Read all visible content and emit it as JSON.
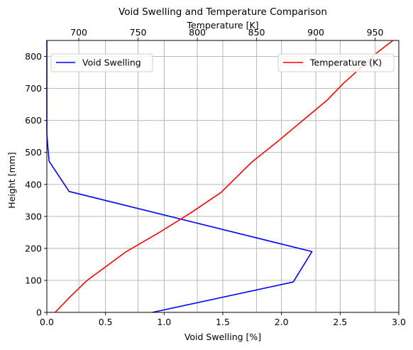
{
  "chart_data": {
    "type": "line",
    "title": "Void Swelling and Temperature Comparison",
    "ylabel": "Height [mm]",
    "ylim": [
      0,
      850
    ],
    "yticks": [
      0,
      100,
      200,
      300,
      400,
      500,
      600,
      700,
      800
    ],
    "grid": true,
    "x_bottom": {
      "label": "Void Swelling [%]",
      "lim": [
        0.0,
        3.0
      ],
      "ticks": [
        0.0,
        0.5,
        1.0,
        1.5,
        2.0,
        2.5,
        3.0
      ],
      "tick_labels": [
        "0.0",
        "0.5",
        "1.0",
        "1.5",
        "2.0",
        "2.5",
        "3.0"
      ]
    },
    "x_top": {
      "label": "Temperature [K]",
      "lim": [
        673,
        970
      ],
      "ticks": [
        700,
        750,
        800,
        850,
        900,
        950
      ],
      "tick_labels": [
        "700",
        "750",
        "800",
        "850",
        "900",
        "950"
      ]
    },
    "series": [
      {
        "name": "Void Swelling",
        "axis": "bottom",
        "color": "#0000ff",
        "points": [
          {
            "x": 0.9,
            "y": 0
          },
          {
            "x": 2.1,
            "y": 95
          },
          {
            "x": 2.26,
            "y": 190
          },
          {
            "x": 0.19,
            "y": 378
          },
          {
            "x": 0.02,
            "y": 472
          },
          {
            "x": 0.01,
            "y": 510
          },
          {
            "x": 0.0,
            "y": 560
          },
          {
            "x": 0.0,
            "y": 850
          }
        ]
      },
      {
        "name": "Temperature (K)",
        "axis": "top",
        "color": "#ff0000",
        "points": [
          {
            "x": 680,
            "y": 0
          },
          {
            "x": 693,
            "y": 50
          },
          {
            "x": 707,
            "y": 100
          },
          {
            "x": 740,
            "y": 190
          },
          {
            "x": 768,
            "y": 250
          },
          {
            "x": 794,
            "y": 310
          },
          {
            "x": 820,
            "y": 375
          },
          {
            "x": 846,
            "y": 470
          },
          {
            "x": 868,
            "y": 535
          },
          {
            "x": 889,
            "y": 600
          },
          {
            "x": 910,
            "y": 665
          },
          {
            "x": 923,
            "y": 715
          },
          {
            "x": 935,
            "y": 755
          },
          {
            "x": 951,
            "y": 810
          },
          {
            "x": 965,
            "y": 850
          }
        ]
      }
    ],
    "legends": [
      {
        "series": "Void Swelling",
        "placement": "upper-left"
      },
      {
        "series": "Temperature (K)",
        "placement": "upper-right"
      }
    ]
  }
}
